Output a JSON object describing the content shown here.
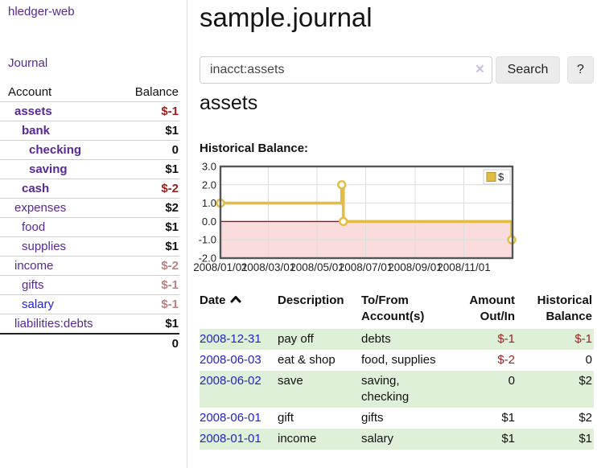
{
  "app": {
    "title": "hledger-web"
  },
  "sidebar": {
    "journal_link": "Journal",
    "accounts_table": {
      "col_account": "Account",
      "col_balance": "Balance",
      "rows": [
        {
          "label": "assets",
          "balance": "$-1",
          "indent": 1,
          "bold": true,
          "balance_color": "#9f1d1d"
        },
        {
          "label": "bank",
          "balance": "$1",
          "indent": 2,
          "bold": true,
          "balance_color": "#111111"
        },
        {
          "label": "checking",
          "balance": "0",
          "indent": 3,
          "bold": true,
          "balance_color": "#111111"
        },
        {
          "label": "saving",
          "balance": "$1",
          "indent": 3,
          "bold": true,
          "balance_color": "#111111"
        },
        {
          "label": "cash",
          "balance": "$-2",
          "indent": 2,
          "bold": true,
          "balance_color": "#9f1d1d"
        },
        {
          "label": "expenses",
          "balance": "$2",
          "indent": 1,
          "bold": false,
          "balance_color": "#111111"
        },
        {
          "label": "food",
          "balance": "$1",
          "indent": 2,
          "bold": false,
          "balance_color": "#111111"
        },
        {
          "label": "supplies",
          "balance": "$1",
          "indent": 2,
          "bold": false,
          "balance_color": "#111111"
        },
        {
          "label": "income",
          "balance": "$-2",
          "indent": 1,
          "bold": false,
          "balance_color": "#bb8181"
        },
        {
          "label": "gifts",
          "balance": "$-1",
          "indent": 2,
          "bold": false,
          "balance_color": "#bb8181"
        },
        {
          "label": "salary",
          "balance": "$-1",
          "indent": 2,
          "bold": false,
          "balance_color": "#bb8181",
          "label_color": "#2222cc"
        },
        {
          "label": "liabilities:debts",
          "balance": "$1",
          "indent": 1,
          "bold": false,
          "balance_color": "#111111"
        }
      ],
      "total": "0"
    }
  },
  "main": {
    "title": "sample.journal",
    "search": {
      "value": "inacct:assets",
      "clear_icon": "×",
      "button": "Search",
      "help_button": "?"
    },
    "account_heading": "assets",
    "chart_heading": "Historical Balance:"
  },
  "chart_data": {
    "type": "line",
    "title": "Historical Balance",
    "step": true,
    "series": [
      {
        "name": "$",
        "points": [
          {
            "date": "2008-01-01",
            "day": 0,
            "value": 1
          },
          {
            "date": "2008-06-01",
            "day": 152,
            "value": 2
          },
          {
            "date": "2008-06-03",
            "day": 154,
            "value": 0
          },
          {
            "date": "2008-12-31",
            "day": 365,
            "value": -1
          }
        ]
      }
    ],
    "ylim": [
      -2,
      3
    ],
    "x_max_day": 366,
    "yticks": [
      {
        "value": 3,
        "label": "3.0"
      },
      {
        "value": 2,
        "label": "2.0"
      },
      {
        "value": 1,
        "label": "1.0"
      },
      {
        "value": 0,
        "label": "0.0"
      },
      {
        "value": -1,
        "label": "-1.0"
      },
      {
        "value": -2,
        "label": "-2.0"
      }
    ],
    "xticks": [
      {
        "day": 0,
        "label": "2008/01/01"
      },
      {
        "day": 60,
        "label": "2008/03/01"
      },
      {
        "day": 121,
        "label": "2008/05/01"
      },
      {
        "day": 182,
        "label": "2008/07/01"
      },
      {
        "day": 244,
        "label": "2008/09/01"
      },
      {
        "day": 305,
        "label": "2008/11/01"
      }
    ],
    "legend": {
      "label": "$",
      "position": "top-right"
    },
    "grid": true,
    "colors": {
      "line": "#e2bc45",
      "marker_fill": "#fffdf2",
      "zero_line": "#991111",
      "negative_bg": "#fadcdc",
      "grid": "#dddddd",
      "border": "#555555"
    }
  },
  "register": {
    "columns": {
      "date": "Date",
      "description": "Description",
      "accounts": "To/From Account(s)",
      "amount": "Amount Out/In",
      "balance": "Historical Balance"
    },
    "rows": [
      {
        "date": "2008-12-31",
        "description": "pay off",
        "accounts": "debts",
        "amount": "$-1",
        "amount_neg": true,
        "balance": "$-1",
        "balance_neg": true,
        "green": true
      },
      {
        "date": "2008-06-03",
        "description": "eat & shop",
        "accounts": "food, supplies",
        "amount": "$-2",
        "amount_neg": true,
        "balance": "0",
        "balance_neg": false,
        "green": false
      },
      {
        "date": "2008-06-02",
        "description": "save",
        "accounts": "saving,\nchecking",
        "amount": "0",
        "amount_neg": false,
        "balance": "$2",
        "balance_neg": false,
        "green": true
      },
      {
        "date": "2008-06-01",
        "description": "gift",
        "accounts": "gifts",
        "amount": "$1",
        "amount_neg": false,
        "balance": "$2",
        "balance_neg": false,
        "green": false
      },
      {
        "date": "2008-01-01",
        "description": "income",
        "accounts": "salary",
        "amount": "$1",
        "amount_neg": false,
        "balance": "$1",
        "balance_neg": false,
        "green": true
      }
    ]
  }
}
